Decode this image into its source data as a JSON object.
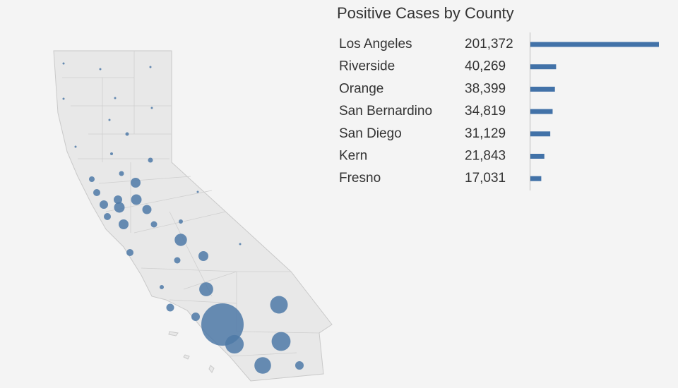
{
  "chart_data": {
    "type": "bar",
    "orientation": "horizontal",
    "title": "Positive Cases by County",
    "categories": [
      "Los Angeles",
      "Riverside",
      "Orange",
      "San Bernardino",
      "San Diego",
      "Kern",
      "Fresno"
    ],
    "values": [
      201372,
      40269,
      38399,
      34819,
      31129,
      21843,
      17031
    ],
    "value_labels": [
      "201,372",
      "40,269",
      "38,399",
      "34,819",
      "31,129",
      "21,843",
      "17,031"
    ],
    "color": "#4272a8"
  }
}
